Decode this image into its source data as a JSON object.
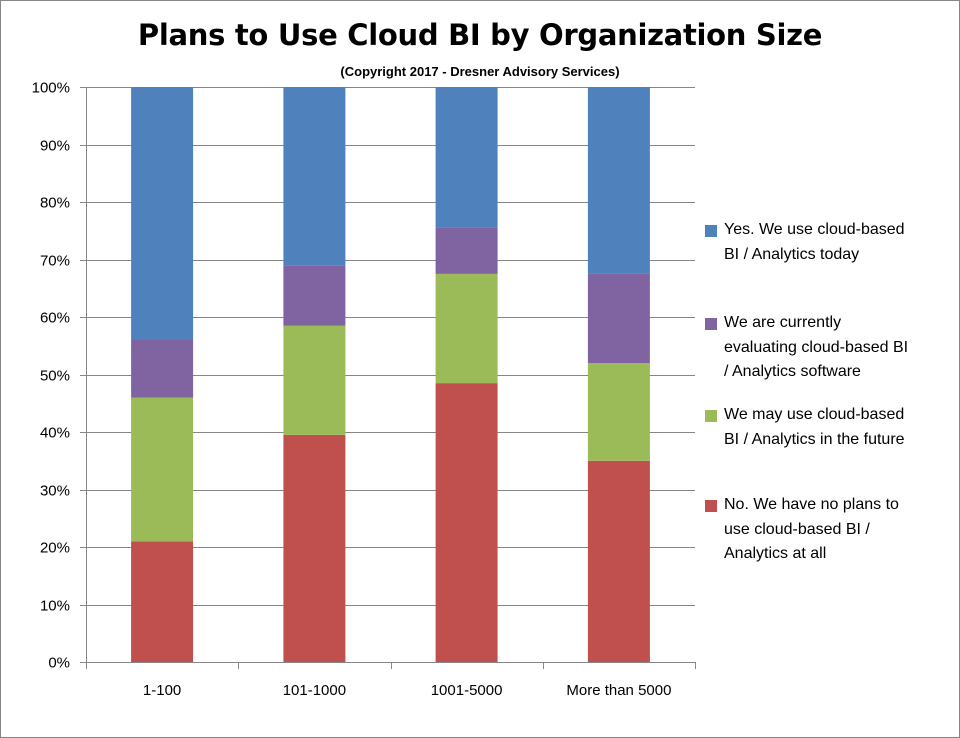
{
  "chart_data": {
    "type": "bar",
    "stacked": true,
    "percent": true,
    "title": "Plans to Use Cloud BI by Organization Size",
    "subtitle": "(Copyright 2017 - Dresner Advisory Services)",
    "categories": [
      "1-100",
      "101-1000",
      "1001-5000",
      "More than 5000"
    ],
    "ylim": [
      0,
      100
    ],
    "yticks": [
      "0%",
      "10%",
      "20%",
      "30%",
      "40%",
      "50%",
      "60%",
      "70%",
      "80%",
      "90%",
      "100%"
    ],
    "grid": true,
    "legend_position": "right",
    "series": [
      {
        "name": "No. We have no plans to\nuse cloud-based BI /\nAnalytics at all",
        "color": "#c0504d",
        "values": [
          21,
          39.5,
          48.5,
          35
        ]
      },
      {
        "name": "We may use cloud-based\nBI / Analytics in the future",
        "color": "#9bbb59",
        "values": [
          25,
          19,
          19,
          17
        ]
      },
      {
        "name": "We are currently\nevaluating cloud-based BI\n/ Analytics software",
        "color": "#8064a2",
        "values": [
          10,
          10.5,
          8,
          15.5
        ]
      },
      {
        "name": "Yes. We use cloud-based\nBI / Analytics  today",
        "color": "#4f81bd",
        "values": [
          44,
          31,
          24.5,
          32.5
        ]
      }
    ]
  }
}
